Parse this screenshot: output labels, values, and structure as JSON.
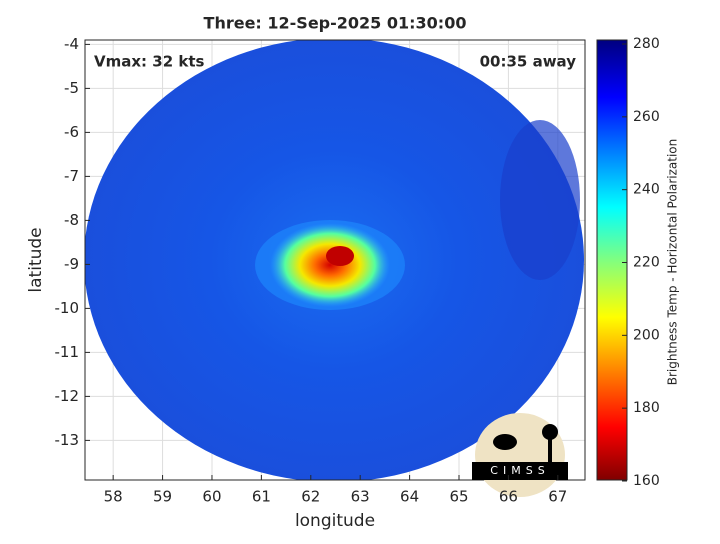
{
  "chart_data": {
    "type": "map",
    "title": "Three: 12-Sep-2025 01:30:00",
    "x_label": "longitude",
    "y_label": "latitude",
    "annotations": [
      "Vmax: 32 kts",
      "00:35 away"
    ],
    "xlim": [
      57.43,
      67.55
    ],
    "ylim": [
      -13.9,
      -3.9
    ],
    "xticks": [
      58,
      59,
      60,
      61,
      62,
      63,
      64,
      65,
      66,
      67
    ],
    "yticks": [
      -4,
      -5,
      -6,
      -7,
      -8,
      -9,
      -10,
      -11,
      -12,
      -13
    ],
    "colorbar": {
      "label": "Brightness Temp - Horizontal Polarization",
      "lim": [
        160,
        280
      ],
      "ticks": [
        160,
        180,
        200,
        220,
        240,
        260,
        280
      ]
    },
    "logo": "CIMSS",
    "grid": true
  }
}
